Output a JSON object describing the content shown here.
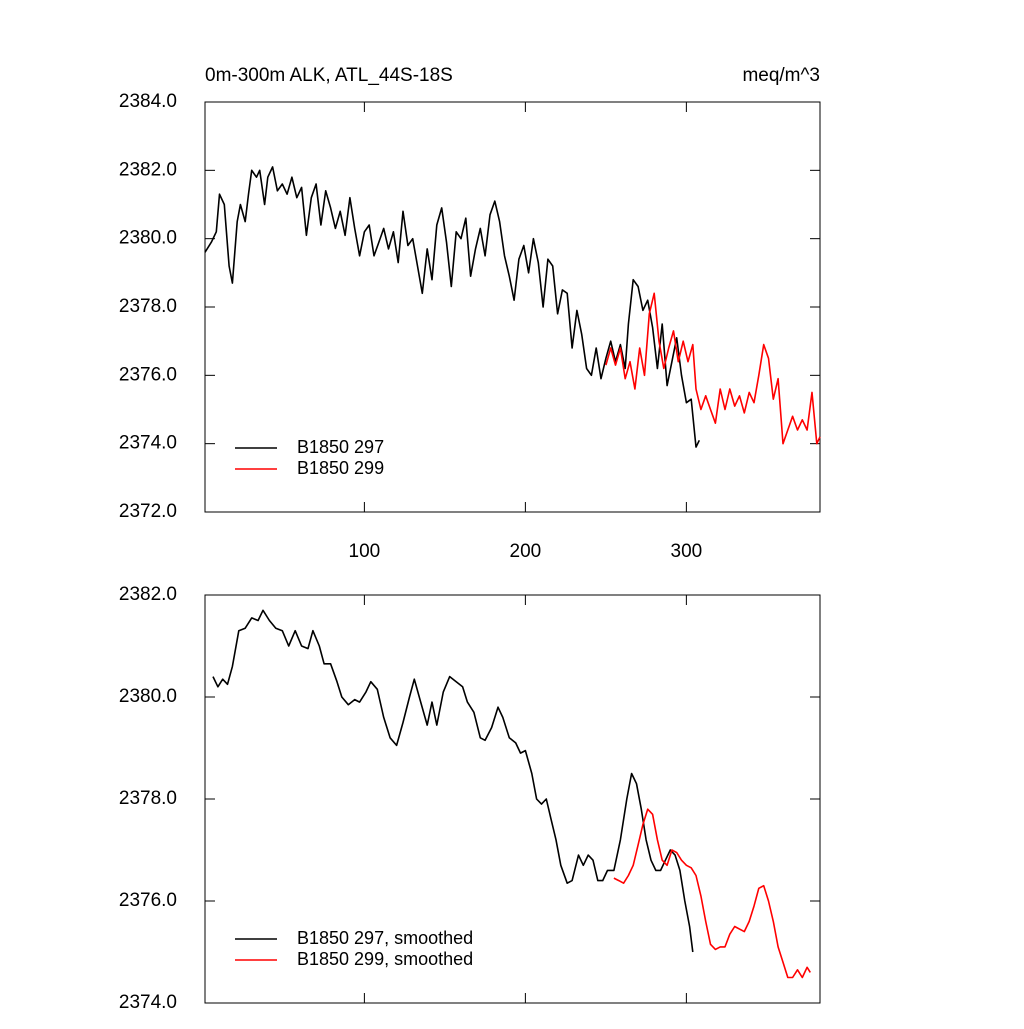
{
  "chart_data": [
    {
      "type": "line",
      "title": "0m-300m ALK, ATL_44S-18S",
      "units": "meq/m^3",
      "xlim": [
        1,
        383
      ],
      "xticks": [
        100,
        200,
        300
      ],
      "xtick_labels": true,
      "ylim": [
        2372,
        2384
      ],
      "yticks": [
        {
          "value": 2372,
          "label": "2372.0"
        },
        {
          "value": 2374,
          "label": "2374.0"
        },
        {
          "value": 2376,
          "label": "2376.0"
        },
        {
          "value": 2378,
          "label": "2378.0"
        },
        {
          "value": 2380,
          "label": "2380.0"
        },
        {
          "value": 2382,
          "label": "2382.0"
        },
        {
          "value": 2384,
          "label": "2384.0"
        }
      ],
      "legend": "lower left",
      "series": [
        {
          "name": "B1850 297",
          "color": "#000000",
          "x": [
            1,
            5,
            8,
            10,
            13,
            16,
            18,
            21,
            23,
            26,
            28,
            30,
            33,
            35,
            38,
            40,
            43,
            46,
            49,
            52,
            55,
            58,
            61,
            64,
            67,
            70,
            73,
            76,
            79,
            82,
            85,
            88,
            91,
            94,
            97,
            100,
            103,
            106,
            109,
            112,
            115,
            118,
            121,
            124,
            127,
            130,
            133,
            136,
            139,
            142,
            145,
            148,
            151,
            154,
            157,
            160,
            163,
            166,
            169,
            172,
            175,
            178,
            181,
            184,
            187,
            190,
            193,
            196,
            199,
            202,
            205,
            208,
            211,
            214,
            217,
            220,
            223,
            226,
            229,
            232,
            235,
            238,
            241,
            244,
            247,
            250,
            253,
            256,
            259,
            262,
            264,
            267,
            270,
            273,
            276,
            279,
            282,
            285,
            288,
            291,
            294,
            297,
            300,
            303,
            306,
            308
          ],
          "values": [
            2379.6,
            2379.9,
            2380.2,
            2381.3,
            2381.0,
            2379.2,
            2378.7,
            2380.5,
            2381.0,
            2380.5,
            2381.3,
            2382.0,
            2381.8,
            2382.0,
            2381.0,
            2381.8,
            2382.1,
            2381.4,
            2381.6,
            2381.3,
            2381.8,
            2381.2,
            2381.5,
            2380.1,
            2381.2,
            2381.6,
            2380.4,
            2381.4,
            2380.9,
            2380.3,
            2380.8,
            2380.1,
            2381.2,
            2380.3,
            2379.5,
            2380.2,
            2380.4,
            2379.5,
            2379.9,
            2380.3,
            2379.7,
            2380.2,
            2379.3,
            2380.8,
            2379.8,
            2380.0,
            2379.2,
            2378.4,
            2379.7,
            2378.8,
            2380.4,
            2380.9,
            2379.9,
            2378.6,
            2380.2,
            2380.0,
            2380.6,
            2378.9,
            2379.7,
            2380.3,
            2379.5,
            2380.7,
            2381.1,
            2380.5,
            2379.5,
            2378.9,
            2378.2,
            2379.4,
            2379.8,
            2379.0,
            2380.0,
            2379.3,
            2378.0,
            2379.4,
            2379.2,
            2377.8,
            2378.5,
            2378.4,
            2376.8,
            2377.9,
            2377.2,
            2376.2,
            2376.0,
            2376.8,
            2375.9,
            2376.5,
            2377.0,
            2376.4,
            2376.9,
            2376.2,
            2377.5,
            2378.8,
            2378.6,
            2377.9,
            2378.2,
            2377.4,
            2376.2,
            2377.5,
            2375.7,
            2376.4,
            2377.1,
            2376.0,
            2375.2,
            2375.3,
            2373.9,
            2374.1
          ]
        },
        {
          "name": "B1850 299",
          "color": "#ff0000",
          "x": [
            250,
            253,
            256,
            259,
            262,
            265,
            268,
            271,
            274,
            277,
            280,
            283,
            286,
            289,
            292,
            295,
            298,
            301,
            304,
            306,
            309,
            312,
            315,
            318,
            321,
            324,
            327,
            330,
            333,
            336,
            339,
            342,
            345,
            348,
            351,
            354,
            357,
            360,
            363,
            366,
            369,
            372,
            375,
            378,
            381,
            383
          ],
          "values": [
            2376.3,
            2376.8,
            2376.3,
            2376.8,
            2375.9,
            2376.4,
            2375.6,
            2376.8,
            2376.0,
            2377.8,
            2378.4,
            2377.0,
            2376.2,
            2376.8,
            2377.3,
            2376.4,
            2377.0,
            2376.4,
            2376.9,
            2375.6,
            2375.0,
            2375.4,
            2375.0,
            2374.6,
            2375.6,
            2375.0,
            2375.6,
            2375.1,
            2375.4,
            2374.9,
            2375.5,
            2375.2,
            2376.0,
            2376.9,
            2376.5,
            2375.3,
            2375.9,
            2374.0,
            2374.4,
            2374.8,
            2374.4,
            2374.7,
            2374.4,
            2375.5,
            2374.0,
            2374.2
          ]
        }
      ]
    },
    {
      "type": "line",
      "xlim": [
        1,
        383
      ],
      "xticks": [
        100,
        200,
        300
      ],
      "xtick_labels": false,
      "ylim": [
        2374,
        2382
      ],
      "yticks": [
        {
          "value": 2374,
          "label": "2374.0"
        },
        {
          "value": 2376,
          "label": "2376.0"
        },
        {
          "value": 2378,
          "label": "2378.0"
        },
        {
          "value": 2380,
          "label": "2380.0"
        },
        {
          "value": 2382,
          "label": "2382.0"
        }
      ],
      "legend": "lower left",
      "series": [
        {
          "name": "B1850 297, smoothed",
          "color": "#000000",
          "x": [
            6,
            9,
            12,
            15,
            18,
            22,
            26,
            30,
            34,
            37,
            41,
            45,
            49,
            53,
            57,
            61,
            65,
            68,
            72,
            75,
            79,
            83,
            86,
            90,
            94,
            97,
            101,
            104,
            108,
            112,
            116,
            120,
            124,
            128,
            131,
            135,
            139,
            142,
            145,
            149,
            153,
            157,
            161,
            164,
            168,
            172,
            175,
            179,
            183,
            186,
            190,
            194,
            197,
            200,
            204,
            207,
            210,
            213,
            216,
            219,
            222,
            226,
            229,
            233,
            236,
            239,
            242,
            245,
            248,
            251,
            255,
            259,
            263,
            266,
            269,
            272,
            275,
            278,
            281,
            284,
            287,
            290,
            293,
            296,
            299,
            302,
            304
          ],
          "values": [
            2380.4,
            2380.2,
            2380.35,
            2380.25,
            2380.6,
            2381.3,
            2381.35,
            2381.55,
            2381.5,
            2381.7,
            2381.5,
            2381.35,
            2381.3,
            2381.0,
            2381.3,
            2381.0,
            2380.95,
            2381.3,
            2381.0,
            2380.65,
            2380.65,
            2380.3,
            2380.0,
            2379.85,
            2379.95,
            2379.9,
            2380.1,
            2380.3,
            2380.15,
            2379.6,
            2379.2,
            2379.05,
            2379.5,
            2380.0,
            2380.35,
            2379.9,
            2379.45,
            2379.9,
            2379.45,
            2380.1,
            2380.4,
            2380.3,
            2380.2,
            2379.9,
            2379.7,
            2379.2,
            2379.15,
            2379.4,
            2379.8,
            2379.6,
            2379.2,
            2379.1,
            2378.9,
            2378.95,
            2378.5,
            2378.0,
            2377.9,
            2378.0,
            2377.6,
            2377.2,
            2376.7,
            2376.35,
            2376.4,
            2376.9,
            2376.7,
            2376.9,
            2376.8,
            2376.4,
            2376.4,
            2376.6,
            2376.6,
            2377.2,
            2378.0,
            2378.5,
            2378.3,
            2377.8,
            2377.2,
            2376.8,
            2376.6,
            2376.6,
            2376.8,
            2377.0,
            2376.9,
            2376.6,
            2376.0,
            2375.5,
            2375.0
          ]
        },
        {
          "name": "B1850 299, smoothed",
          "color": "#ff0000",
          "x": [
            255,
            258,
            261,
            264,
            267,
            270,
            273,
            276,
            279,
            282,
            285,
            288,
            291,
            294,
            297,
            300,
            303,
            306,
            309,
            312,
            315,
            318,
            321,
            324,
            327,
            330,
            333,
            336,
            339,
            342,
            345,
            348,
            351,
            354,
            357,
            360,
            363,
            366,
            369,
            372,
            375,
            377
          ],
          "values": [
            2376.45,
            2376.4,
            2376.35,
            2376.5,
            2376.7,
            2377.1,
            2377.5,
            2377.8,
            2377.7,
            2377.2,
            2376.8,
            2376.7,
            2377.0,
            2376.95,
            2376.8,
            2376.7,
            2376.65,
            2376.5,
            2376.1,
            2375.6,
            2375.15,
            2375.05,
            2375.1,
            2375.1,
            2375.35,
            2375.5,
            2375.45,
            2375.4,
            2375.6,
            2375.9,
            2376.25,
            2376.3,
            2376.0,
            2375.6,
            2375.1,
            2374.8,
            2374.5,
            2374.5,
            2374.65,
            2374.5,
            2374.7,
            2374.6
          ]
        }
      ]
    }
  ]
}
